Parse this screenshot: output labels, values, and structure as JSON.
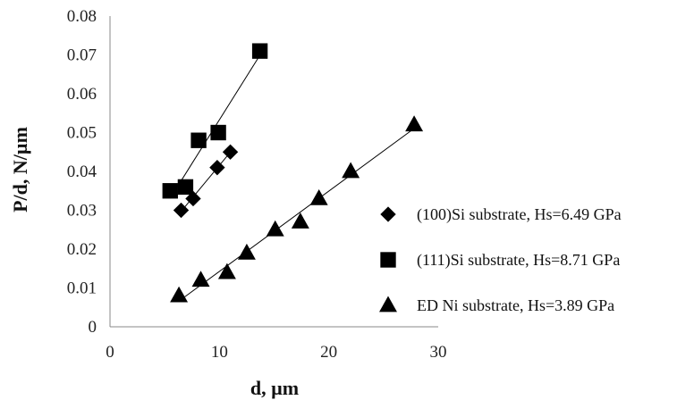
{
  "chart_data": {
    "type": "scatter",
    "xlabel": "d, µm",
    "ylabel": "P/d, N/µm",
    "xlim": [
      0,
      30
    ],
    "ylim": [
      0,
      0.08
    ],
    "xticks": [
      "0",
      "10",
      "20",
      "30"
    ],
    "yticks": [
      "0",
      "0.01",
      "0.02",
      "0.03",
      "0.04",
      "0.05",
      "0.06",
      "0.07",
      "0.08"
    ],
    "grid": false,
    "legend_position": "right",
    "series": [
      {
        "name": "(100)Si substrate, Hs=6.49 GPa",
        "marker": "diamond",
        "color": "#000000",
        "x": [
          6.5,
          7.6,
          9.8,
          11.0
        ],
        "y": [
          0.03,
          0.033,
          0.041,
          0.045
        ],
        "trendline": true
      },
      {
        "name": "(111)Si substrate, Hs=8.71 GPa",
        "marker": "square",
        "color": "#000000",
        "x": [
          5.5,
          6.9,
          8.1,
          9.9,
          13.7
        ],
        "y": [
          0.035,
          0.036,
          0.048,
          0.05,
          0.071
        ],
        "trendline": true
      },
      {
        "name": "ED Ni substrate, Hs=3.89 GPa",
        "marker": "triangle",
        "color": "#000000",
        "x": [
          6.3,
          8.3,
          10.7,
          12.5,
          15.1,
          17.4,
          19.1,
          22.0,
          27.8
        ],
        "y": [
          0.008,
          0.012,
          0.014,
          0.019,
          0.025,
          0.027,
          0.033,
          0.04,
          0.052
        ],
        "trendline": true
      }
    ]
  }
}
